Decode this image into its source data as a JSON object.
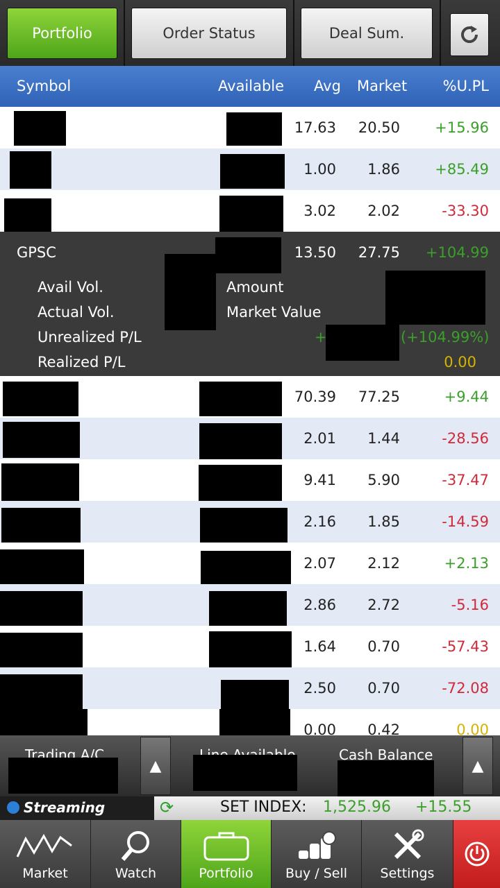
{
  "tabs": {
    "portfolio": "Portfolio",
    "order_status": "Order Status",
    "deal_sum": "Deal Sum."
  },
  "header": {
    "symbol": "Symbol",
    "available": "Available",
    "avg": "Avg",
    "market": "Market",
    "upl": "%U.PL"
  },
  "rows": [
    {
      "avg": "17.63",
      "market": "20.50",
      "upl": "+15.96",
      "sign": "pos"
    },
    {
      "avg": "1.00",
      "market": "1.86",
      "upl": "+85.49",
      "sign": "pos"
    },
    {
      "avg": "3.02",
      "market": "2.02",
      "upl": "-33.30",
      "sign": "neg"
    }
  ],
  "expanded": {
    "symbol": "GPSC",
    "avg": "13.50",
    "market": "27.75",
    "upl": "+104.99",
    "avail_vol_label": "Avail Vol.",
    "actual_vol_label": "Actual Vol.",
    "unrealized_label": "Unrealized P/L",
    "realized_label": "Realized P/L",
    "amount_label": "Amount",
    "market_value_label": "Market Value",
    "unrealized_prefix": "+",
    "unrealized_pct": "(+104.99%)",
    "realized_value": "0.00"
  },
  "rows2": [
    {
      "avg": "70.39",
      "market": "77.25",
      "upl": "+9.44",
      "sign": "pos"
    },
    {
      "avg": "2.01",
      "market": "1.44",
      "upl": "-28.56",
      "sign": "neg"
    },
    {
      "avg": "9.41",
      "market": "5.90",
      "upl": "-37.47",
      "sign": "neg"
    },
    {
      "avg": "2.16",
      "market": "1.85",
      "upl": "-14.59",
      "sign": "neg"
    },
    {
      "avg": "2.07",
      "market": "2.12",
      "upl": "+2.13",
      "sign": "pos"
    },
    {
      "avg": "2.86",
      "market": "2.72",
      "upl": "-5.16",
      "sign": "neg"
    },
    {
      "avg": "1.64",
      "market": "0.70",
      "upl": "-57.43",
      "sign": "neg"
    },
    {
      "avg": "2.50",
      "market": "0.70",
      "upl": "-72.08",
      "sign": "neg"
    },
    {
      "avg": "0.00",
      "market": "0.42",
      "upl": "0.00",
      "sign": "zero"
    }
  ],
  "summary": {
    "trading_ac": "Trading A/C",
    "line_available": "Line Available",
    "cash_balance": "Cash Balance",
    "arrow": "▲"
  },
  "index": {
    "streaming": "Streaming",
    "label": "SET INDEX:",
    "value": "1,525.96",
    "change": "+15.55"
  },
  "nav": {
    "market": "Market",
    "watch": "Watch",
    "portfolio": "Portfolio",
    "buysell": "Buy / Sell",
    "settings": "Settings"
  }
}
